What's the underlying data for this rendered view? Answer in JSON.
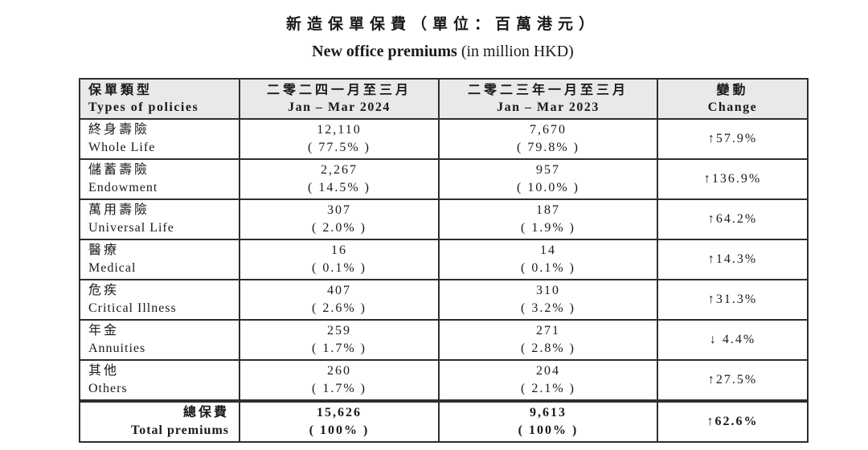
{
  "title": {
    "zh": "新造保單保費（單位：百萬港元）",
    "en_bold": "New office premiums",
    "en_rest": " (in million HKD)"
  },
  "table": {
    "header": {
      "col1_zh": "保單類型",
      "col1_en": "Types of policies",
      "col2_zh": "二零二四一月至三月",
      "col2_en": "Jan – Mar 2024",
      "col3_zh": "二零二三年一月至三月",
      "col3_en": "Jan – Mar 2023",
      "col4_zh": "變動",
      "col4_en": "Change"
    },
    "rows": [
      {
        "zh": "終身壽險",
        "en": "Whole Life",
        "v2024": "12,110",
        "p2024": "( 77.5% )",
        "v2023": "7,670",
        "p2023": "( 79.8% )",
        "change": "↑57.9%"
      },
      {
        "zh": "儲蓄壽險",
        "en": "Endowment",
        "v2024": "2,267",
        "p2024": "( 14.5% )",
        "v2023": "957",
        "p2023": "( 10.0% )",
        "change": "↑136.9%"
      },
      {
        "zh": "萬用壽險",
        "en": "Universal Life",
        "v2024": "307",
        "p2024": "( 2.0% )",
        "v2023": "187",
        "p2023": "( 1.9% )",
        "change": "↑64.2%"
      },
      {
        "zh": "醫療",
        "en": "Medical",
        "v2024": "16",
        "p2024": "( 0.1% )",
        "v2023": "14",
        "p2023": "( 0.1% )",
        "change": "↑14.3%"
      },
      {
        "zh": "危疾",
        "en": "Critical Illness",
        "v2024": "407",
        "p2024": "( 2.6% )",
        "v2023": "310",
        "p2023": "( 3.2% )",
        "change": "↑31.3%"
      },
      {
        "zh": "年金",
        "en": "Annuities",
        "v2024": "259",
        "p2024": "( 1.7% )",
        "v2023": "271",
        "p2023": "( 2.8% )",
        "change": "↓ 4.4%"
      },
      {
        "zh": "其他",
        "en": "Others",
        "v2024": "260",
        "p2024": "( 1.7% )",
        "v2023": "204",
        "p2023": "( 2.1% )",
        "change": "↑27.5%"
      }
    ],
    "total": {
      "zh": "總保費",
      "en": "Total premiums",
      "v2024": "15,626",
      "p2024": "( 100% )",
      "v2023": "9,613",
      "p2023": "( 100% )",
      "change": "↑62.6%"
    }
  },
  "colors": {
    "header_bg": "#e9e9e9",
    "border": "#2e2e2e",
    "text": "#1a1a1a"
  }
}
